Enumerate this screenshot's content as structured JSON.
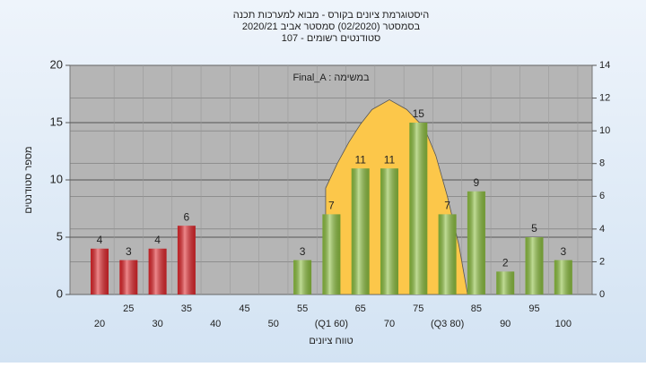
{
  "chart_data": {
    "type": "bar",
    "title": [
      "היסטוגרמת ציונים בקורס - מבוא למערכות תכנה",
      "בסמסטר  (02/2020)  סמסטר אביב 2020/21",
      "סטודנטים רשומים - 107"
    ],
    "annotation": "Final_A : במשימה",
    "xlabel": "טווח ציונים",
    "ylabel": "מספר סטודנטים",
    "categories": [
      "20",
      "25",
      "30",
      "35",
      "40",
      "45",
      "50",
      "55",
      "(Q1 60)",
      "65",
      "70",
      "75",
      "(Q3 80)",
      "85",
      "90",
      "95",
      "100"
    ],
    "values": [
      4,
      3,
      4,
      6,
      0,
      0,
      0,
      3,
      7,
      11,
      11,
      15,
      7,
      9,
      2,
      5,
      3
    ],
    "colors": [
      "#e0262b",
      "#e0262b",
      "#e0262b",
      "#e0262b",
      "#e0262b",
      "#e0262b",
      "#e0262b",
      "#8cbf3f",
      "#8cbf3f",
      "#8cbf3f",
      "#8cbf3f",
      "#8cbf3f",
      "#8cbf3f",
      "#8cbf3f",
      "#8cbf3f",
      "#8cbf3f",
      "#8cbf3f"
    ],
    "ylim": [
      0,
      20
    ],
    "yticks": [
      0,
      5,
      10,
      15,
      20
    ],
    "y2lim": [
      0,
      14
    ],
    "y2ticks": [
      0,
      2,
      4,
      6,
      8,
      10,
      12,
      14
    ],
    "curve": {
      "axis": "y2",
      "color": "#fcc74a",
      "x": [
        59,
        59,
        61,
        63,
        65,
        67,
        70,
        73,
        76,
        78,
        80,
        82,
        83.5
      ],
      "values": [
        0,
        6.5,
        8,
        9.3,
        10.4,
        11.3,
        11.9,
        11.3,
        10.2,
        8.5,
        6,
        3,
        0
      ]
    },
    "grid": true
  }
}
